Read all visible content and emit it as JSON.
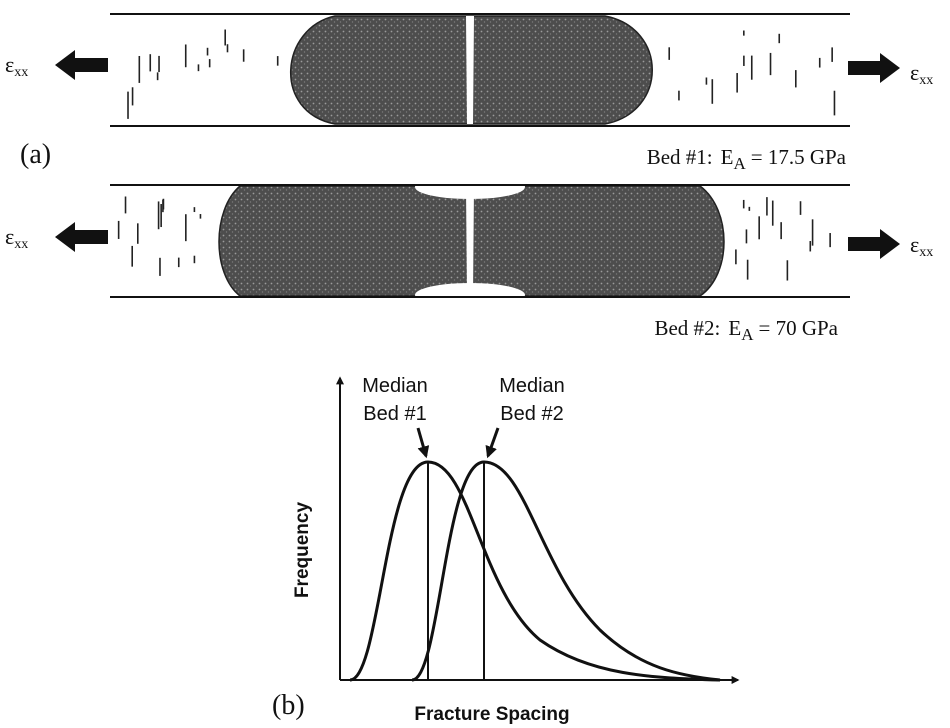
{
  "panel_a": {
    "label": "(a)",
    "strain_label": {
      "symbol": "ε",
      "subscript": "xx"
    },
    "beds": [
      {
        "name": "Bed #1:",
        "modulus_symbol": "E",
        "modulus_subscript": "A",
        "modulus_value": "= 17.5 GPa"
      },
      {
        "name": "Bed #2:",
        "modulus_symbol": "E",
        "modulus_subscript": "A",
        "modulus_value": "= 70 GPa"
      }
    ]
  },
  "panel_b": {
    "label": "(b)",
    "y_axis_label": "Frequency",
    "x_axis_label": "Fracture Spacing",
    "annotations": [
      {
        "line1": "Median",
        "line2": "Bed #1"
      },
      {
        "line1": "Median",
        "line2": "Bed #2"
      }
    ]
  }
}
